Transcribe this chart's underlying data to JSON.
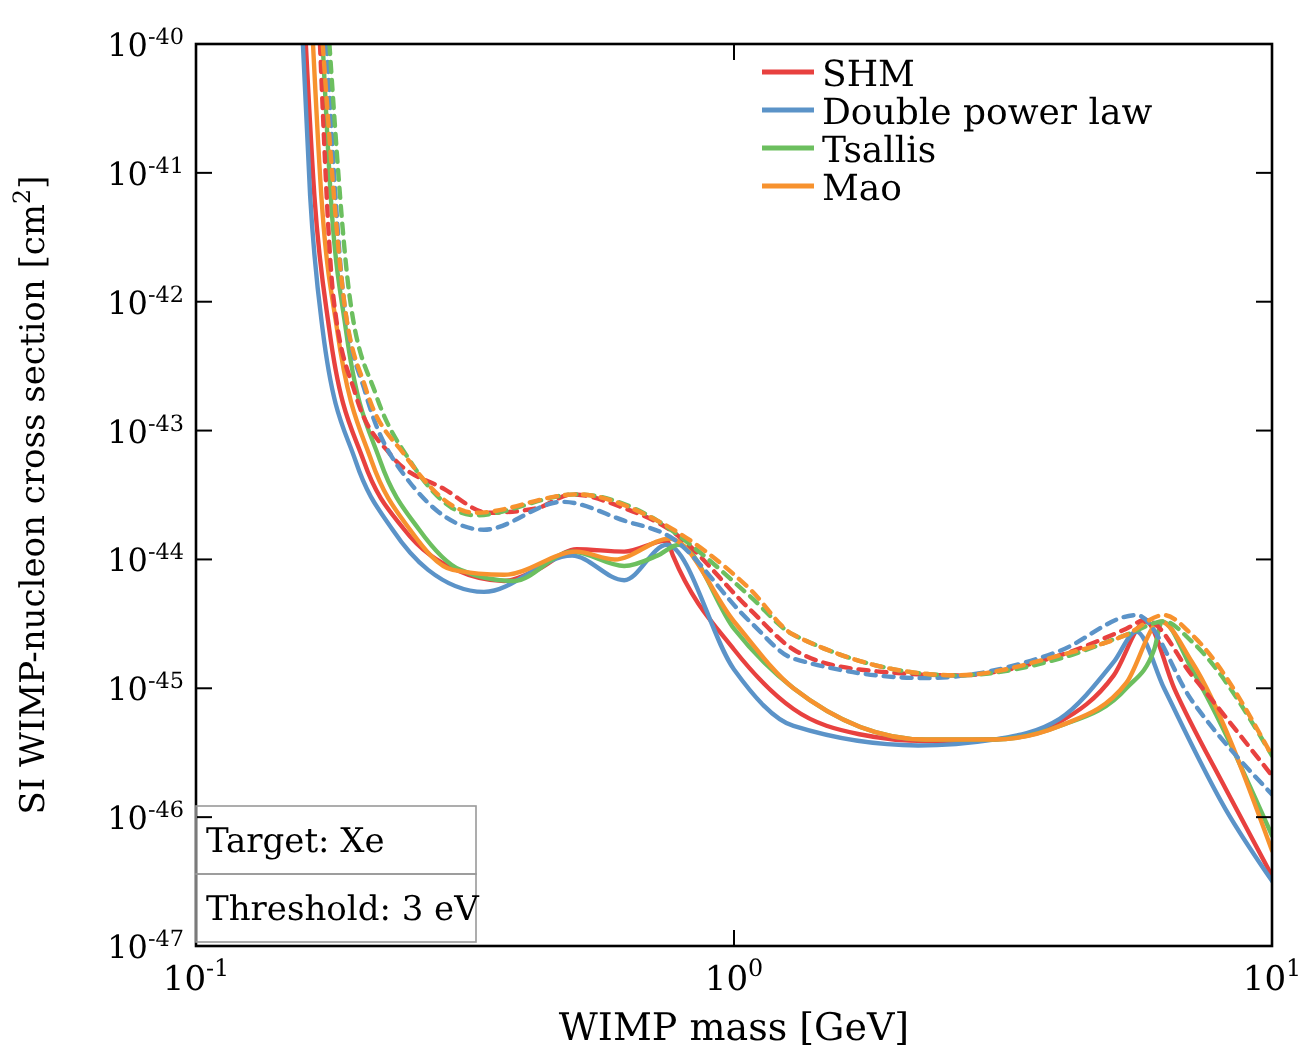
{
  "chart_data": {
    "type": "line",
    "xlabel": "WIMP mass [GeV]",
    "ylabel": "SI WIMP-nucleon cross section [cm$^{2}$]",
    "log": "xy",
    "legend": "top right",
    "grid": false,
    "xlim": [
      0.1,
      10
    ],
    "xticks": [
      {
        "value": 0.1,
        "label": "10$^{-1}$"
      },
      {
        "value": 1,
        "label": "10$^{0}$"
      },
      {
        "value": 10,
        "label": "10$^{1}$"
      }
    ],
    "ylim": [
      1e-47,
      1e-40
    ],
    "yticks": [
      {
        "value": 1e-47,
        "label": "10$^{-47}$"
      },
      {
        "value": 1e-46,
        "label": "10$^{-46}$"
      },
      {
        "value": 1e-45,
        "label": "10$^{-45}$"
      },
      {
        "value": 1e-44,
        "label": "10$^{-44}$"
      },
      {
        "value": 1e-43,
        "label": "10$^{-43}$"
      },
      {
        "value": 1e-42,
        "label": "10$^{-42}$"
      },
      {
        "value": 1e-41,
        "label": "10$^{-41}$"
      },
      {
        "value": 1e-40,
        "label": "10$^{-40}$"
      }
    ],
    "annotations": [
      "Target: Xe",
      "Threshold: 3 eV"
    ],
    "series": [
      {
        "name": "SHM",
        "color": "#e8413f",
        "line_style": "solid",
        "x": [
          0.16,
          0.166,
          0.177,
          0.205,
          0.244,
          0.304,
          0.374,
          0.43,
          0.51,
          0.625,
          0.75,
          0.77,
          1.0,
          1.29,
          1.71,
          2.27,
          3.04,
          4.03,
          5.08,
          5.83,
          6.58,
          8.2,
          10
        ],
        "values": [
          1e-40,
          6.6e-42,
          6e-43,
          5.8e-44,
          1.7e-44,
          8.3e-45,
          6.8e-45,
          8.3e-45,
          1.2e-44,
          1.15e-44,
          1.4e-44,
          1.07e-44,
          2e-45,
          6.9e-46,
          4.4e-46,
          3.9e-46,
          4e-46,
          5.5e-46,
          1.26e-45,
          3.3e-45,
          1e-45,
          1.66e-46,
          3.5e-47
        ]
      },
      {
        "name": "Double power law",
        "color": "#5b93c8",
        "line_style": "solid",
        "x": [
          0.158,
          0.163,
          0.172,
          0.198,
          0.232,
          0.27,
          0.343,
          0.5,
          0.625,
          0.75,
          1.0,
          1.29,
          2.2,
          3.04,
          4.03,
          5.08,
          5.6,
          6.3,
          8.2,
          10
        ],
        "values": [
          1e-40,
          6.6e-42,
          6e-43,
          5.8e-44,
          1.7e-44,
          8.3e-45,
          5.6e-45,
          1.07e-44,
          6.9e-45,
          1.3e-44,
          1.4e-45,
          5.1e-46,
          3.6e-46,
          4e-46,
          5.8e-46,
          1.6e-45,
          2.75e-45,
          1e-45,
          1.15e-46,
          3.2e-47
        ]
      },
      {
        "name": "Tsallis",
        "color": "#6cbf5f",
        "line_style": "solid",
        "x": [
          0.172,
          0.178,
          0.19,
          0.22,
          0.26,
          0.31,
          0.39,
          0.5,
          0.625,
          0.72,
          0.79,
          1.0,
          1.29,
          2.27,
          3.04,
          4.03,
          5.36,
          6.04,
          6.25,
          7.1,
          10
        ],
        "values": [
          1e-40,
          6.6e-42,
          6e-43,
          5.8e-44,
          1.7e-44,
          8.3e-45,
          6.8e-45,
          1.15e-44,
          8.9e-45,
          1.07e-44,
          1.3e-44,
          2.9e-45,
          1e-45,
          4e-46,
          4e-46,
          5.1e-46,
          1e-45,
          2e-45,
          3.3e-45,
          1.4e-45,
          7.2e-47
        ]
      },
      {
        "name": "Mao",
        "color": "#f7922e",
        "line_style": "solid",
        "x": [
          0.165,
          0.171,
          0.183,
          0.212,
          0.25,
          0.3,
          0.374,
          0.51,
          0.6,
          0.76,
          1.0,
          1.29,
          2.27,
          3.04,
          4.03,
          5.36,
          6.2,
          7.1,
          10
        ],
        "values": [
          1e-40,
          6.6e-42,
          6e-43,
          5.8e-44,
          1.7e-44,
          8.3e-45,
          7.6e-45,
          1.15e-44,
          1e-44,
          1.45e-44,
          3.3e-45,
          1e-45,
          4e-46,
          4e-46,
          5.1e-46,
          1.1e-45,
          3.3e-45,
          1.6e-45,
          5.5e-47
        ]
      },
      {
        "color": "#e8413f",
        "line_style": "dashed",
        "x": [
          0.17,
          0.18,
          0.198,
          0.23,
          0.29,
          0.35,
          0.43,
          0.5,
          0.625,
          0.76,
          1.07,
          1.29,
          1.71,
          2.6,
          4.03,
          5.36,
          5.83,
          7.1,
          10
        ],
        "values": [
          1e-40,
          1.1e-42,
          1.9e-43,
          6.5e-44,
          3.5e-44,
          2.3e-44,
          2.5e-44,
          3.2e-44,
          2.5e-44,
          1.7e-44,
          4.1e-45,
          2e-45,
          1.4e-45,
          1.26e-45,
          1.8e-45,
          2.9e-45,
          3.4e-45,
          1.26e-45,
          2.1e-46
        ]
      },
      {
        "color": "#5b93c8",
        "line_style": "dashed",
        "x": [
          0.175,
          0.188,
          0.207,
          0.244,
          0.343,
          0.48,
          0.625,
          0.76,
          1.07,
          1.29,
          2.27,
          4.03,
          5.6,
          7.1,
          10
        ],
        "values": [
          1e-40,
          1.1e-42,
          1.9e-43,
          4.5e-44,
          1.7e-44,
          2.8e-44,
          2e-44,
          1.5e-44,
          3.3e-45,
          1.7e-45,
          1.2e-45,
          1.95e-45,
          3.7e-45,
          8e-46,
          1.5e-46
        ]
      },
      {
        "color": "#6cbf5f",
        "line_style": "dashed",
        "x": [
          0.177,
          0.193,
          0.216,
          0.25,
          0.33,
          0.51,
          0.72,
          0.85,
          1.07,
          1.29,
          2.6,
          4.03,
          5.36,
          6.3,
          7.1,
          10
        ],
        "values": [
          1e-40,
          1.1e-42,
          1.9e-43,
          5.8e-44,
          2.2e-44,
          3.2e-44,
          2e-44,
          1.2e-44,
          5.2e-45,
          2.6e-45,
          1.26e-45,
          1.7e-45,
          2.6e-45,
          3.3e-45,
          2.3e-45,
          3e-46
        ]
      },
      {
        "color": "#f7922e",
        "line_style": "dashed",
        "x": [
          0.172,
          0.188,
          0.207,
          0.244,
          0.33,
          0.51,
          0.72,
          1.07,
          1.29,
          2.6,
          4.03,
          5.36,
          6.3,
          7.1,
          10
        ],
        "values": [
          1e-40,
          1.1e-42,
          2.1e-43,
          6.5e-44,
          2.3e-44,
          3.2e-44,
          2e-44,
          5.9e-45,
          2.6e-45,
          1.26e-45,
          1.8e-45,
          2.6e-45,
          3.7e-45,
          2.6e-45,
          3e-46
        ]
      }
    ]
  }
}
